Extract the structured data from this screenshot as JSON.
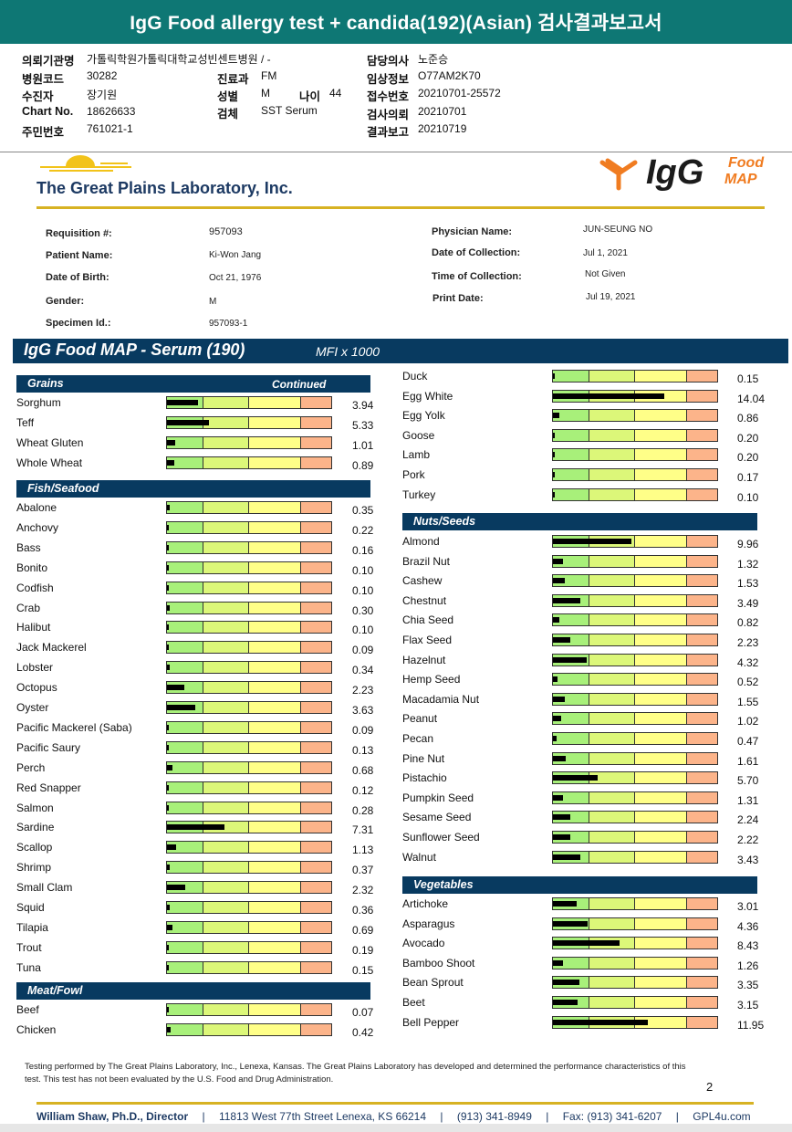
{
  "header": {
    "title": "IgG Food allergy test + candida(192)(Asian) 검사결과보고서",
    "fields": [
      {
        "label": "의뢰기관명",
        "value": "가톨릭학원가톨릭대학교성빈센트병원 / -"
      },
      {
        "label": "병원코드",
        "value": "30282"
      },
      {
        "label": "수진자",
        "value": "장기원"
      },
      {
        "label": "Chart No.",
        "value": "18626633"
      },
      {
        "label": "주민번호",
        "value": "761021-1"
      },
      {
        "label": "진료과",
        "value": "FM"
      },
      {
        "label": "성별",
        "value": "M"
      },
      {
        "label": "나이",
        "value": "44"
      },
      {
        "label": "검체",
        "value": "SST Serum"
      },
      {
        "label": "담당의사",
        "value": "노준승"
      },
      {
        "label": "임상정보",
        "value": "O77AM2K70"
      },
      {
        "label": "접수번호",
        "value": "20210701-25572"
      },
      {
        "label": "검사의뢰",
        "value": "20210701"
      },
      {
        "label": "결과보고",
        "value": "20210719"
      }
    ]
  },
  "lab": {
    "name": "The Great Plains Laboratory, Inc.",
    "logo_main": "IgG",
    "logo_food": "Food",
    "logo_map": "MAP"
  },
  "requisition": {
    "left": [
      {
        "label": "Requisition #:",
        "value": "957093"
      },
      {
        "label": "Patient Name:",
        "value": "Ki-Won Jang"
      },
      {
        "label": "Date of Birth:",
        "value": "Oct 21, 1976"
      },
      {
        "label": "Gender:",
        "value": "M"
      },
      {
        "label": "Specimen Id.:",
        "value": "957093-1"
      }
    ],
    "right": [
      {
        "label": "Physician Name:",
        "value": "JUN-SEUNG NO"
      },
      {
        "label": "Date of Collection:",
        "value": "Jul 1, 2021"
      },
      {
        "label": "Time of Collection:",
        "value": "Not Given"
      },
      {
        "label": "Print Date:",
        "value": "Jul 19, 2021"
      }
    ]
  },
  "banner": {
    "title": "IgG Food MAP - Serum (190)",
    "subtitle": "MFI x 1000"
  },
  "scale_max": 21,
  "colors": {
    "navy": "#083a60",
    "teal": "#0e7774",
    "green": "#a8f07a",
    "lime": "#dcf779",
    "yellow": "#ffff88",
    "orange": "#fcb48a",
    "gold": "#d7b223"
  },
  "left_sections": [
    {
      "title": "Grains",
      "note": "Continued",
      "items": [
        {
          "name": "Sorghum",
          "value": "3.94"
        },
        {
          "name": "Teff",
          "value": "5.33"
        },
        {
          "name": "Wheat Gluten",
          "value": "1.01"
        },
        {
          "name": "Whole Wheat",
          "value": "0.89"
        }
      ]
    },
    {
      "title": "Fish/Seafood",
      "items": [
        {
          "name": "Abalone",
          "value": "0.35"
        },
        {
          "name": "Anchovy",
          "value": "0.22"
        },
        {
          "name": "Bass",
          "value": "0.16"
        },
        {
          "name": "Bonito",
          "value": "0.10"
        },
        {
          "name": "Codfish",
          "value": "0.10"
        },
        {
          "name": "Crab",
          "value": "0.30"
        },
        {
          "name": "Halibut",
          "value": "0.10"
        },
        {
          "name": "Jack Mackerel",
          "value": "0.09"
        },
        {
          "name": "Lobster",
          "value": "0.34"
        },
        {
          "name": "Octopus",
          "value": "2.23"
        },
        {
          "name": "Oyster",
          "value": "3.63"
        },
        {
          "name": "Pacific Mackerel (Saba)",
          "value": "0.09"
        },
        {
          "name": "Pacific Saury",
          "value": "0.13"
        },
        {
          "name": "Perch",
          "value": "0.68"
        },
        {
          "name": "Red Snapper",
          "value": "0.12"
        },
        {
          "name": "Salmon",
          "value": "0.28"
        },
        {
          "name": "Sardine",
          "value": "7.31"
        },
        {
          "name": "Scallop",
          "value": "1.13"
        },
        {
          "name": "Shrimp",
          "value": "0.37"
        },
        {
          "name": "Small Clam",
          "value": "2.32"
        },
        {
          "name": "Squid",
          "value": "0.36"
        },
        {
          "name": "Tilapia",
          "value": "0.69"
        },
        {
          "name": "Trout",
          "value": "0.19"
        },
        {
          "name": "Tuna",
          "value": "0.15"
        }
      ]
    },
    {
      "title": "Meat/Fowl",
      "items": [
        {
          "name": "Beef",
          "value": "0.07"
        },
        {
          "name": "Chicken",
          "value": "0.42"
        }
      ]
    }
  ],
  "right_top_items": [
    {
      "name": "Duck",
      "value": "0.15"
    },
    {
      "name": "Egg White",
      "value": "14.04"
    },
    {
      "name": "Egg Yolk",
      "value": "0.86"
    },
    {
      "name": "Goose",
      "value": "0.20"
    },
    {
      "name": "Lamb",
      "value": "0.20"
    },
    {
      "name": "Pork",
      "value": "0.17"
    },
    {
      "name": "Turkey",
      "value": "0.10"
    }
  ],
  "right_sections": [
    {
      "title": "Nuts/Seeds",
      "items": [
        {
          "name": "Almond",
          "value": "9.96"
        },
        {
          "name": "Brazil Nut",
          "value": "1.32"
        },
        {
          "name": "Cashew",
          "value": "1.53"
        },
        {
          "name": "Chestnut",
          "value": "3.49"
        },
        {
          "name": "Chia Seed",
          "value": "0.82"
        },
        {
          "name": "Flax Seed",
          "value": "2.23"
        },
        {
          "name": "Hazelnut",
          "value": "4.32"
        },
        {
          "name": "Hemp Seed",
          "value": "0.52"
        },
        {
          "name": "Macadamia Nut",
          "value": "1.55"
        },
        {
          "name": "Peanut",
          "value": "1.02"
        },
        {
          "name": "Pecan",
          "value": "0.47"
        },
        {
          "name": "Pine Nut",
          "value": "1.61"
        },
        {
          "name": "Pistachio",
          "value": "5.70"
        },
        {
          "name": "Pumpkin Seed",
          "value": "1.31"
        },
        {
          "name": "Sesame Seed",
          "value": "2.24"
        },
        {
          "name": "Sunflower Seed",
          "value": "2.22"
        },
        {
          "name": "Walnut",
          "value": "3.43"
        }
      ]
    },
    {
      "title": "Vegetables",
      "items": [
        {
          "name": "Artichoke",
          "value": "3.01"
        },
        {
          "name": "Asparagus",
          "value": "4.36"
        },
        {
          "name": "Avocado",
          "value": "8.43"
        },
        {
          "name": "Bamboo Shoot",
          "value": "1.26"
        },
        {
          "name": "Bean Sprout",
          "value": "3.35"
        },
        {
          "name": "Beet",
          "value": "3.15"
        },
        {
          "name": "Bell Pepper",
          "value": "11.95"
        }
      ]
    }
  ],
  "footer": {
    "note": "Testing performed by The Great Plains Laboratory, Inc., Lenexa, Kansas.  The Great Plains Laboratory has developed and determined the performance characteristics of this test.  This test has not been evaluated by the U.S. Food and Drug Administration.",
    "page": "2",
    "director": "William Shaw, Ph.D., Director",
    "address": "11813 West 77th Street Lenexa, KS 66214",
    "phone": "(913) 341-8949",
    "fax": "Fax: (913) 341-6207",
    "web": "GPL4u.com"
  }
}
